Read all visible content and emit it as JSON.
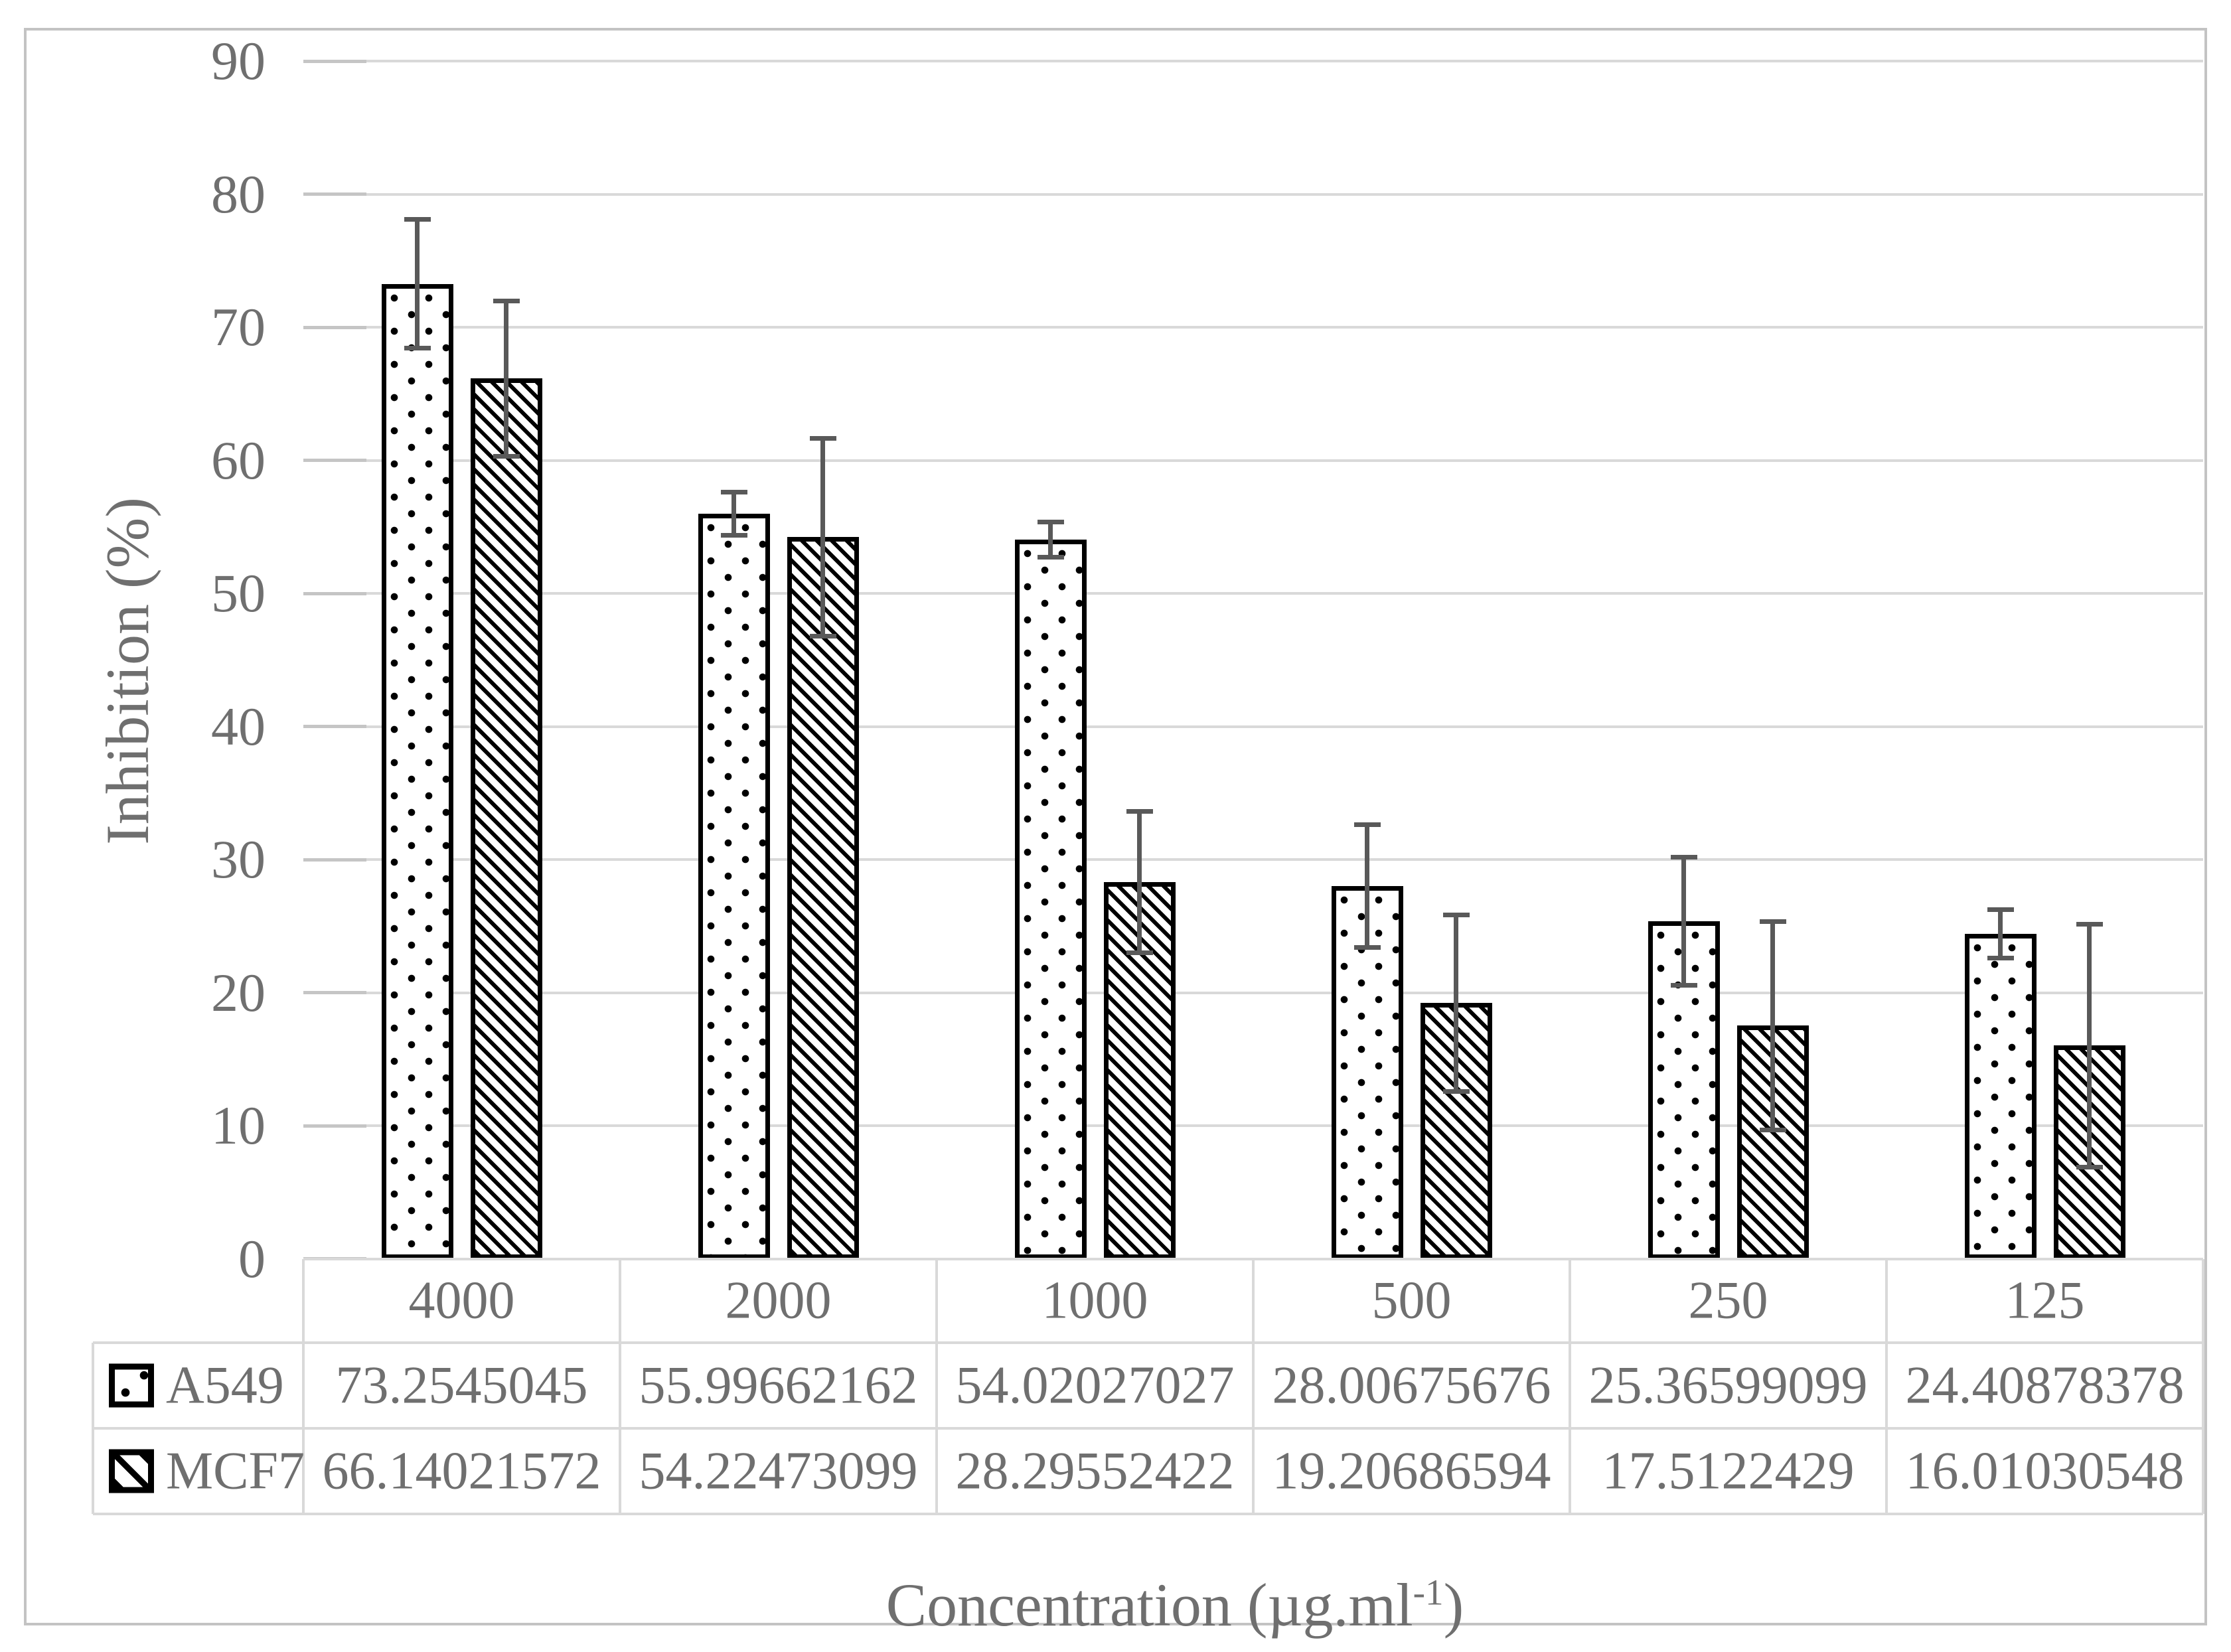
{
  "figure": {
    "y_axis": {
      "title": "Inhibition (%)",
      "tick_labels": [
        "0",
        "10",
        "20",
        "30",
        "40",
        "50",
        "60",
        "70",
        "80",
        "90"
      ]
    },
    "x_axis": {
      "title_main": "Concentration (µg.ml",
      "title_superscript": "-1",
      "title_close": ")"
    }
  },
  "chart_data": {
    "type": "bar",
    "title": "",
    "xlabel": "Concentration (µg.ml-1)",
    "ylabel": "Inhibition (%)",
    "ylim": [
      0,
      90
    ],
    "ytick_step": 10,
    "grid": true,
    "legend_position": "data-table-left",
    "categories": [
      "4000",
      "2000",
      "1000",
      "500",
      "250",
      "125"
    ],
    "series": [
      {
        "name": "A549",
        "pattern": "dots",
        "values": [
          73.2545045,
          55.99662162,
          54.02027027,
          28.00675676,
          25.36599099,
          24.40878378
        ],
        "errors": [
          5.0,
          1.8,
          1.5,
          4.8,
          5.0,
          2.0
        ],
        "display_values": [
          "73.2545045",
          "55.99662162",
          "54.02027027",
          "28.00675676",
          "25.36599099",
          "24.40878378"
        ]
      },
      {
        "name": "MCF7",
        "pattern": "diagonal-hatch",
        "values": [
          66.14021572,
          54.22473099,
          28.29552422,
          19.20686594,
          17.5122429,
          16.01030548
        ],
        "errors": [
          6.0,
          7.6,
          5.5,
          6.8,
          8.0,
          9.3
        ],
        "display_values": [
          "66.14021572",
          "54.22473099",
          "28.29552422",
          "19.20686594",
          "17.5122429",
          "16.01030548"
        ]
      }
    ]
  },
  "colors": {
    "text": "#6f6f6f",
    "gridline": "#d9d9d9",
    "error_bar": "#595959",
    "bar_outline": "#000000",
    "figure_border": "#c3c3c3",
    "background": "#ffffff"
  }
}
